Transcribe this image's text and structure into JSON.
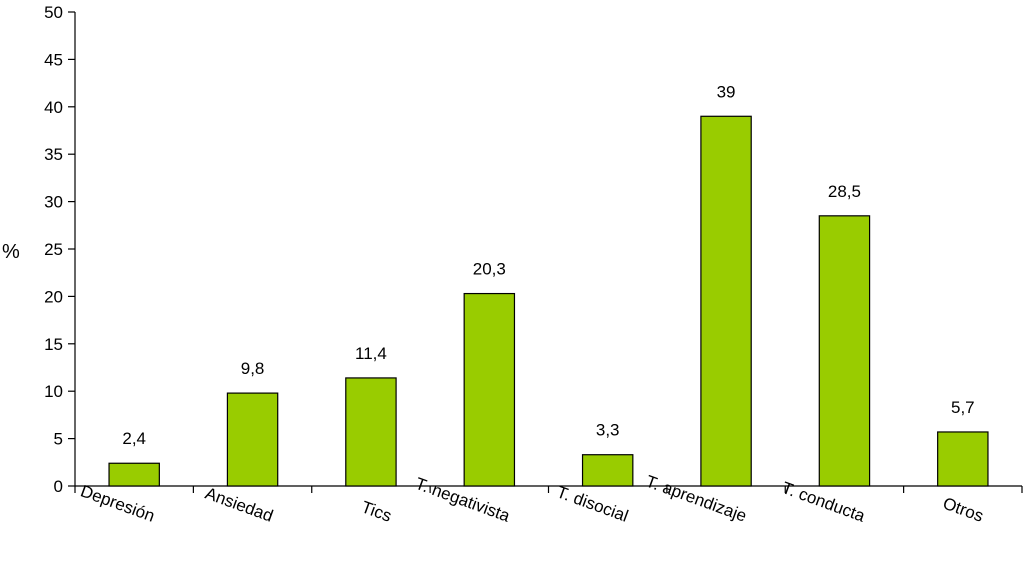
{
  "chart_data": {
    "type": "bar",
    "categories": [
      "Depresión",
      "Ansiedad",
      "Tics",
      "T. negativista",
      "T. disocial",
      "T. aprendizaje",
      "T. conducta",
      "Otros"
    ],
    "values": [
      2.4,
      9.8,
      11.4,
      20.3,
      3.3,
      39,
      28.5,
      5.7
    ],
    "data_labels": [
      "2,4",
      "9,8",
      "11,4",
      "20,3",
      "3,3",
      "39",
      "28,5",
      "5,7"
    ],
    "title": "",
    "xlabel": "",
    "ylabel": "%",
    "ylim": [
      0,
      50
    ],
    "yticks": [
      0,
      5,
      10,
      15,
      20,
      25,
      30,
      35,
      40,
      45,
      50
    ],
    "grid": false,
    "legend": "none",
    "colors": {
      "bar": "#99cc00",
      "outline": "#000000"
    }
  }
}
